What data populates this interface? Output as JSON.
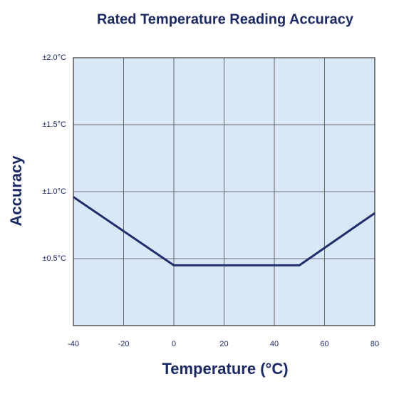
{
  "chart_data": {
    "type": "line",
    "title": "Rated Temperature Reading Accuracy",
    "x_label": "Temperature (°C)",
    "y_label": "Accuracy",
    "x": [
      -40,
      0,
      50,
      80
    ],
    "series": [
      {
        "name": "Accuracy",
        "color": "#1f2f6e",
        "values": [
          0.96,
          0.45,
          0.45,
          0.84
        ]
      }
    ],
    "xlim": [
      -40,
      80
    ],
    "xticks": [
      -40,
      -20,
      0,
      20,
      40,
      60,
      80
    ],
    "ylim": [
      0,
      2.0
    ],
    "yticks": [
      {
        "value": 0.5,
        "label": "±0.5°C"
      },
      {
        "value": 1.0,
        "label": "±1.0°C"
      },
      {
        "value": 1.5,
        "label": "±1.5°C"
      },
      {
        "value": 2.0,
        "label": "±2.0°C"
      }
    ],
    "grid": true
  }
}
